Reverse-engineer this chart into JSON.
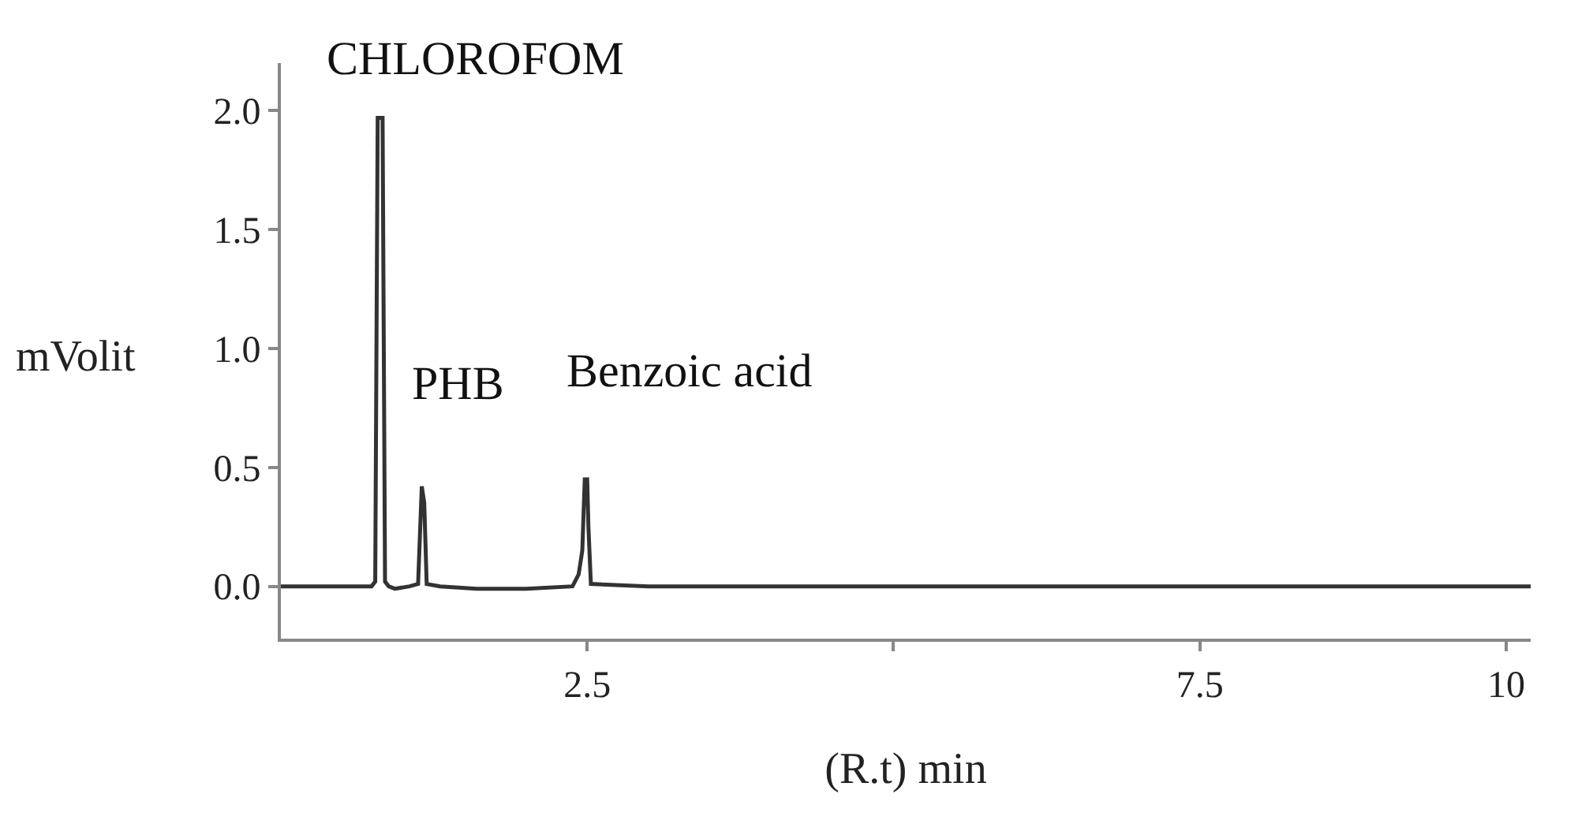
{
  "chart_data": {
    "type": "line",
    "xlabel": "(R.t) min",
    "ylabel": "mVolit",
    "x": [
      0,
      0.74,
      0.77,
      0.79,
      0.83,
      0.85,
      0.88,
      0.93,
      1.05,
      1.12,
      1.15,
      1.17,
      1.19,
      1.3,
      1.6,
      2.0,
      2.38,
      2.43,
      2.46,
      2.48,
      2.5,
      2.51,
      2.53,
      3,
      6,
      10.2
    ],
    "series": [
      {
        "color": "#333333",
        "values": [
          0,
          0,
          0.02,
          1.97,
          1.97,
          0.02,
          0,
          -0.01,
          0,
          0.01,
          0.42,
          0.35,
          0.01,
          0,
          -0.01,
          -0.01,
          0,
          0.05,
          0.15,
          0.45,
          0.45,
          0.25,
          0.01,
          0,
          0,
          0
        ]
      }
    ],
    "xlim": [
      0,
      10.2
    ],
    "ylim": [
      -0.22,
      2.2
    ],
    "xticks": [
      2.5,
      {
        "value": 5,
        "label": null
      },
      7.5,
      10
    ],
    "yticks": [
      {
        "value": 0,
        "label": "0.0"
      },
      0.5,
      {
        "value": 1,
        "label": "1.0"
      },
      1.5,
      {
        "value": 2,
        "label": "2.0"
      }
    ],
    "annotations": [
      {
        "text": "CHLOROFOM",
        "x": 0.81,
        "y": 1.97
      },
      {
        "text": "PHB",
        "x": 1.15,
        "y": 0.42
      },
      {
        "text": "Benzoic acid",
        "x": 2.49,
        "y": 0.45
      }
    ],
    "legend": false,
    "marker": "none",
    "line_style": "solid"
  }
}
